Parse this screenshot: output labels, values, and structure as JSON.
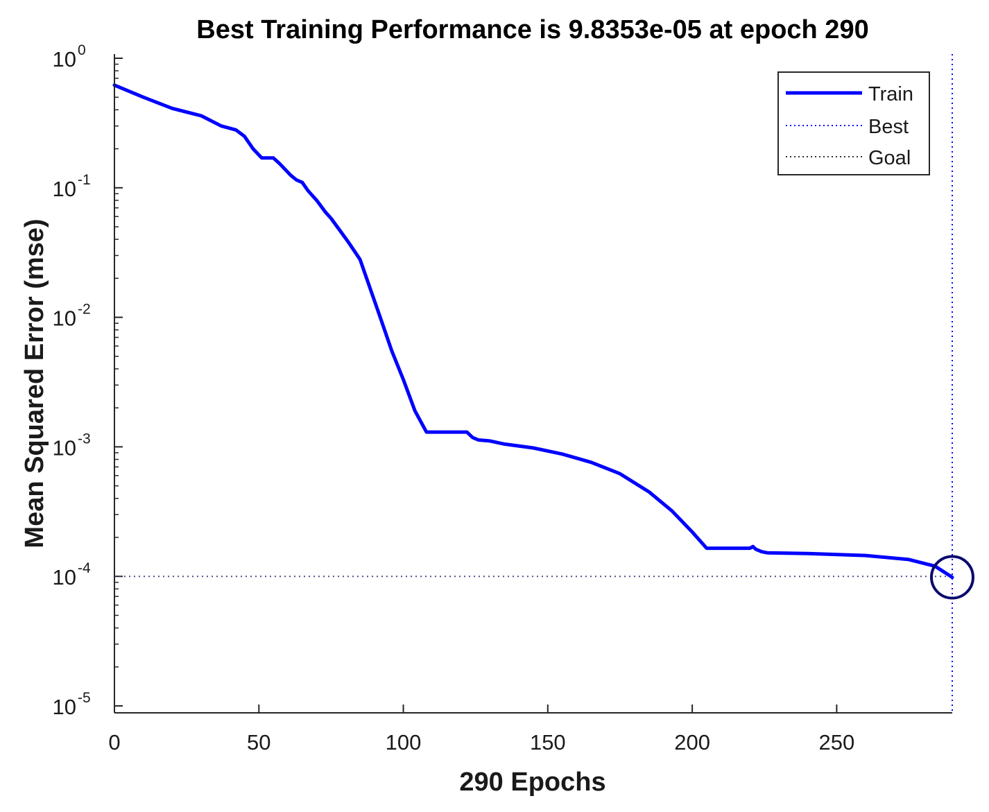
{
  "chart_data": {
    "type": "line",
    "title": "Best Training Performance is 9.8353e-05 at epoch 290",
    "xlabel": "290 Epochs",
    "ylabel": "Mean Squared Error  (mse)",
    "xlim": [
      0,
      290
    ],
    "ylim": [
      1e-05,
      1
    ],
    "yscale": "log",
    "grid": false,
    "legend_position": "top-right",
    "x_ticks": [
      "0",
      "50",
      "100",
      "150",
      "200",
      "250"
    ],
    "y_ticks": [
      {
        "base": "10",
        "exp": "0"
      },
      {
        "base": "10",
        "exp": "-1"
      },
      {
        "base": "10",
        "exp": "-2"
      },
      {
        "base": "10",
        "exp": "-3"
      },
      {
        "base": "10",
        "exp": "-4"
      },
      {
        "base": "10",
        "exp": "-5"
      }
    ],
    "series": [
      {
        "name": "Train",
        "color": "#0000ff",
        "style": "solid",
        "x": [
          0,
          10,
          20,
          30,
          37,
          42,
          45,
          48,
          51,
          55,
          57,
          61,
          63,
          65,
          67,
          70,
          73,
          75,
          78,
          81,
          85,
          88,
          92,
          96,
          100,
          104,
          108,
          111,
          114,
          118,
          122,
          124,
          126,
          130,
          135,
          145,
          155,
          165,
          175,
          185,
          193,
          200,
          205,
          208,
          210,
          215,
          220,
          221,
          222,
          224,
          226,
          240,
          260,
          275,
          284,
          290
        ],
        "y": [
          0.62,
          0.5,
          0.41,
          0.36,
          0.3,
          0.28,
          0.25,
          0.2,
          0.17,
          0.17,
          0.155,
          0.125,
          0.115,
          0.11,
          0.095,
          0.08,
          0.065,
          0.058,
          0.047,
          0.038,
          0.028,
          0.018,
          0.01,
          0.0055,
          0.0033,
          0.0019,
          0.0013,
          0.0013,
          0.0013,
          0.0013,
          0.0013,
          0.00118,
          0.00113,
          0.00111,
          0.00105,
          0.00098,
          0.00088,
          0.00076,
          0.00062,
          0.00045,
          0.00032,
          0.00022,
          0.000165,
          0.000165,
          0.000165,
          0.000165,
          0.000165,
          0.00017,
          0.000162,
          0.000155,
          0.000152,
          0.00015,
          0.000145,
          0.000135,
          0.00012,
          9.8353e-05
        ]
      },
      {
        "name": "Best",
        "color": "#0000ff",
        "style": "dotted",
        "x": [
          290
        ],
        "y": [
          9.8353e-05
        ],
        "marker": "circle"
      },
      {
        "name": "Goal",
        "color": "#000000",
        "style": "dotted",
        "x": [
          0,
          290
        ],
        "y": [
          0.0001,
          0.0001
        ]
      }
    ]
  }
}
